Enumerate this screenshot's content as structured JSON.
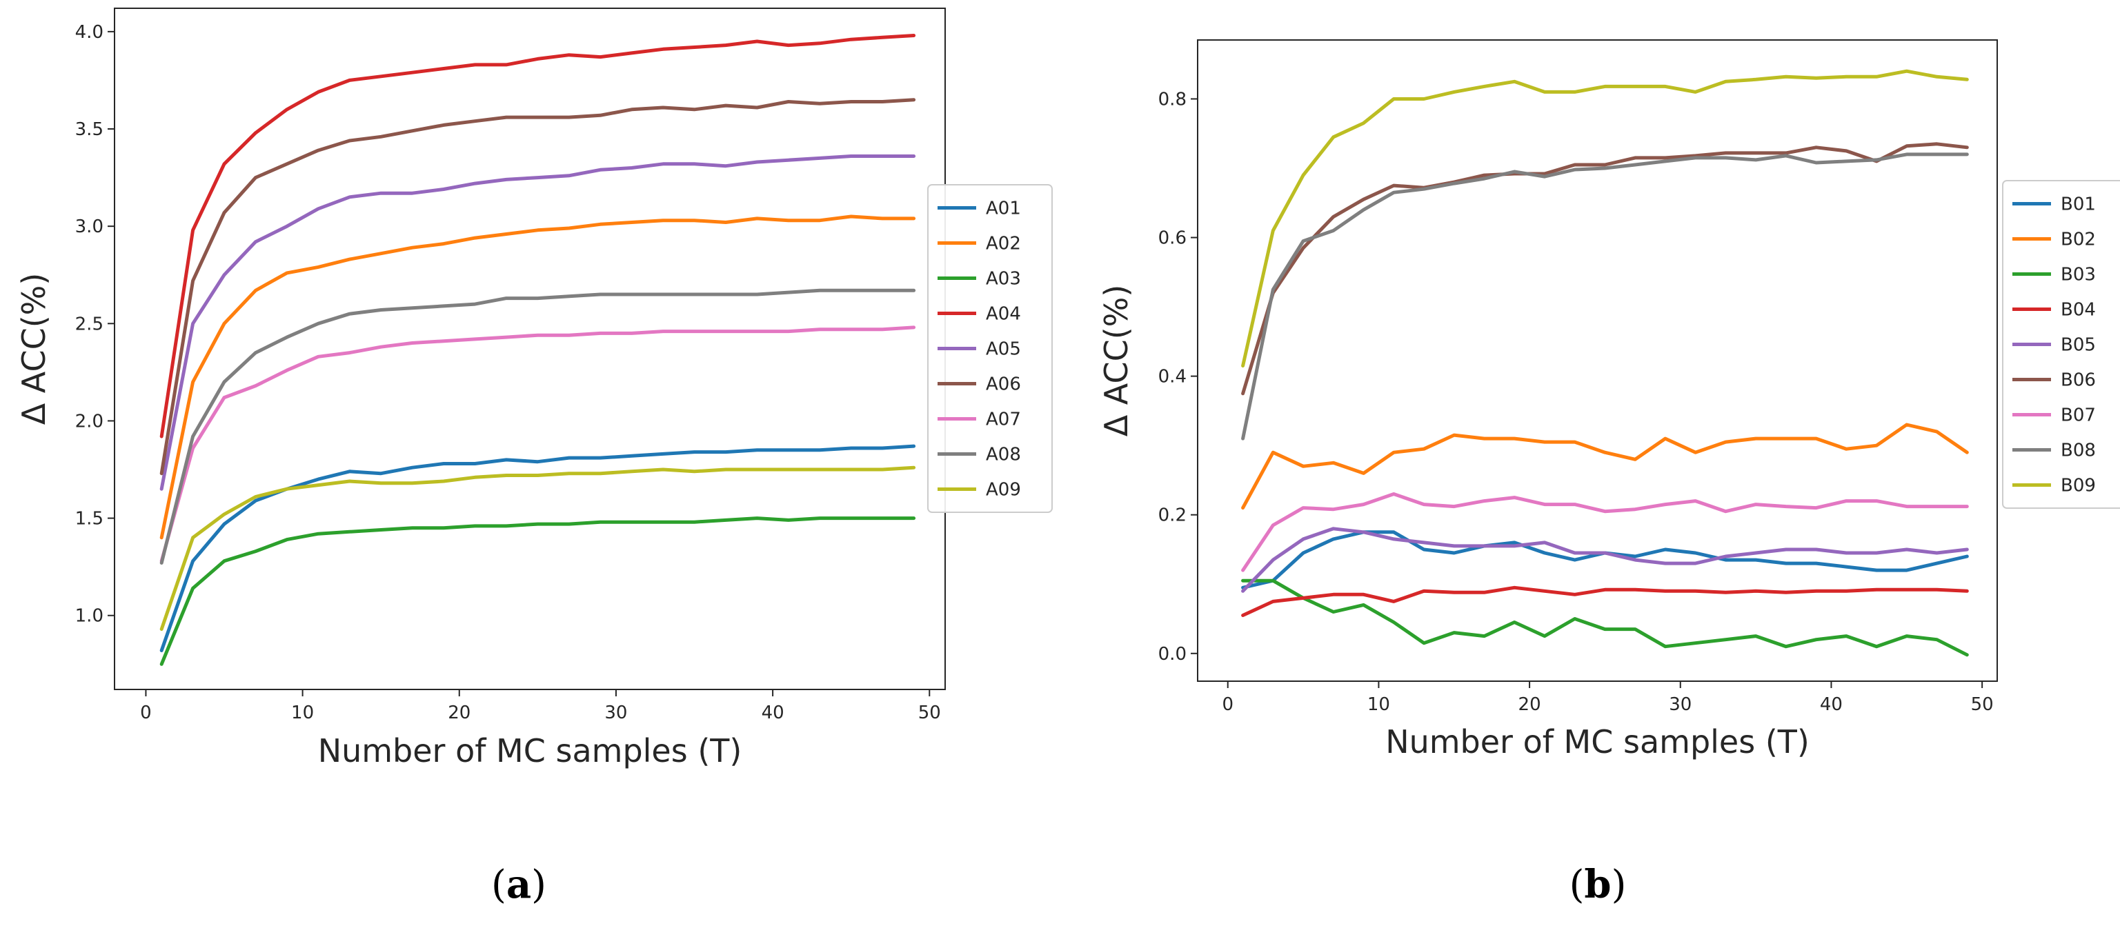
{
  "chart_data": [
    {
      "type": "line",
      "caption_letter": "a",
      "xlabel": "Number of MC samples (T)",
      "ylabel": "Δ ACC(%)",
      "xlim": [
        -2,
        51
      ],
      "ylim": [
        0.62,
        4.12
      ],
      "xticks": [
        0,
        10,
        20,
        30,
        40,
        50
      ],
      "yticks": [
        1.0,
        1.5,
        2.0,
        2.5,
        3.0,
        3.5,
        4.0
      ],
      "ytick_labels": [
        "1.0",
        "1.5",
        "2.0",
        "2.5",
        "3.0",
        "3.5",
        "4.0"
      ],
      "grid": false,
      "legend_position": "right",
      "x": [
        1,
        3,
        5,
        7,
        9,
        11,
        13,
        15,
        17,
        19,
        21,
        23,
        25,
        27,
        29,
        31,
        33,
        35,
        37,
        39,
        41,
        43,
        45,
        47,
        49
      ],
      "series": [
        {
          "name": "A01",
          "color": "#1f77b4",
          "values": [
            0.82,
            1.28,
            1.47,
            1.59,
            1.65,
            1.7,
            1.74,
            1.73,
            1.76,
            1.78,
            1.78,
            1.8,
            1.79,
            1.81,
            1.81,
            1.82,
            1.83,
            1.84,
            1.84,
            1.85,
            1.85,
            1.85,
            1.86,
            1.86,
            1.87
          ]
        },
        {
          "name": "A02",
          "color": "#ff7f0e",
          "values": [
            1.4,
            2.2,
            2.5,
            2.67,
            2.76,
            2.79,
            2.83,
            2.86,
            2.89,
            2.91,
            2.94,
            2.96,
            2.98,
            2.99,
            3.01,
            3.02,
            3.03,
            3.03,
            3.02,
            3.04,
            3.03,
            3.03,
            3.05,
            3.04,
            3.04
          ]
        },
        {
          "name": "A03",
          "color": "#2ca02c",
          "values": [
            0.75,
            1.14,
            1.28,
            1.33,
            1.39,
            1.42,
            1.43,
            1.44,
            1.45,
            1.45,
            1.46,
            1.46,
            1.47,
            1.47,
            1.48,
            1.48,
            1.48,
            1.48,
            1.49,
            1.5,
            1.49,
            1.5,
            1.5,
            1.5,
            1.5
          ]
        },
        {
          "name": "A04",
          "color": "#d62728",
          "values": [
            1.92,
            2.98,
            3.32,
            3.48,
            3.6,
            3.69,
            3.75,
            3.77,
            3.79,
            3.81,
            3.83,
            3.83,
            3.86,
            3.88,
            3.87,
            3.89,
            3.91,
            3.92,
            3.93,
            3.95,
            3.93,
            3.94,
            3.96,
            3.97,
            3.98
          ]
        },
        {
          "name": "A05",
          "color": "#9467bd",
          "values": [
            1.65,
            2.5,
            2.75,
            2.92,
            3.0,
            3.09,
            3.15,
            3.17,
            3.17,
            3.19,
            3.22,
            3.24,
            3.25,
            3.26,
            3.29,
            3.3,
            3.32,
            3.32,
            3.31,
            3.33,
            3.34,
            3.35,
            3.36,
            3.36,
            3.36
          ]
        },
        {
          "name": "A06",
          "color": "#8c564b",
          "values": [
            1.73,
            2.72,
            3.07,
            3.25,
            3.32,
            3.39,
            3.44,
            3.46,
            3.49,
            3.52,
            3.54,
            3.56,
            3.56,
            3.56,
            3.57,
            3.6,
            3.61,
            3.6,
            3.62,
            3.61,
            3.64,
            3.63,
            3.64,
            3.64,
            3.65
          ]
        },
        {
          "name": "A07",
          "color": "#e377c2",
          "values": [
            1.28,
            1.86,
            2.12,
            2.18,
            2.26,
            2.33,
            2.35,
            2.38,
            2.4,
            2.41,
            2.42,
            2.43,
            2.44,
            2.44,
            2.45,
            2.45,
            2.46,
            2.46,
            2.46,
            2.46,
            2.46,
            2.47,
            2.47,
            2.47,
            2.48
          ]
        },
        {
          "name": "A08",
          "color": "#7f7f7f",
          "values": [
            1.27,
            1.92,
            2.2,
            2.35,
            2.43,
            2.5,
            2.55,
            2.57,
            2.58,
            2.59,
            2.6,
            2.63,
            2.63,
            2.64,
            2.65,
            2.65,
            2.65,
            2.65,
            2.65,
            2.65,
            2.66,
            2.67,
            2.67,
            2.67,
            2.67
          ]
        },
        {
          "name": "A09",
          "color": "#bcbd22",
          "values": [
            0.93,
            1.4,
            1.52,
            1.61,
            1.65,
            1.67,
            1.69,
            1.68,
            1.68,
            1.69,
            1.71,
            1.72,
            1.72,
            1.73,
            1.73,
            1.74,
            1.75,
            1.74,
            1.75,
            1.75,
            1.75,
            1.75,
            1.75,
            1.75,
            1.76
          ]
        }
      ]
    },
    {
      "type": "line",
      "caption_letter": "b",
      "xlabel": "Number of MC samples (T)",
      "ylabel": "Δ ACC(%)",
      "xlim": [
        -2,
        51
      ],
      "ylim": [
        -0.04,
        0.885
      ],
      "xticks": [
        0,
        10,
        20,
        30,
        40,
        50
      ],
      "yticks": [
        0.0,
        0.2,
        0.4,
        0.6,
        0.8
      ],
      "ytick_labels": [
        "0.0",
        "0.2",
        "0.4",
        "0.6",
        "0.8"
      ],
      "grid": false,
      "legend_position": "right",
      "x": [
        1,
        3,
        5,
        7,
        9,
        11,
        13,
        15,
        17,
        19,
        21,
        23,
        25,
        27,
        29,
        31,
        33,
        35,
        37,
        39,
        41,
        43,
        45,
        47,
        49
      ],
      "series": [
        {
          "name": "B01",
          "color": "#1f77b4",
          "values": [
            0.095,
            0.105,
            0.145,
            0.165,
            0.175,
            0.175,
            0.15,
            0.145,
            0.155,
            0.16,
            0.145,
            0.135,
            0.145,
            0.14,
            0.15,
            0.145,
            0.135,
            0.135,
            0.13,
            0.13,
            0.125,
            0.12,
            0.12,
            0.13,
            0.14
          ]
        },
        {
          "name": "B02",
          "color": "#ff7f0e",
          "values": [
            0.21,
            0.29,
            0.27,
            0.275,
            0.26,
            0.29,
            0.295,
            0.315,
            0.31,
            0.31,
            0.305,
            0.305,
            0.29,
            0.28,
            0.31,
            0.29,
            0.305,
            0.31,
            0.31,
            0.31,
            0.295,
            0.3,
            0.33,
            0.32,
            0.29
          ]
        },
        {
          "name": "B03",
          "color": "#2ca02c",
          "values": [
            0.105,
            0.105,
            0.08,
            0.06,
            0.07,
            0.045,
            0.015,
            0.03,
            0.025,
            0.045,
            0.025,
            0.05,
            0.035,
            0.035,
            0.01,
            0.015,
            0.02,
            0.025,
            0.01,
            0.02,
            0.025,
            0.01,
            0.025,
            0.02,
            -0.002
          ]
        },
        {
          "name": "B04",
          "color": "#d62728",
          "values": [
            0.055,
            0.075,
            0.08,
            0.085,
            0.085,
            0.075,
            0.09,
            0.088,
            0.088,
            0.095,
            0.09,
            0.085,
            0.092,
            0.092,
            0.09,
            0.09,
            0.088,
            0.09,
            0.088,
            0.09,
            0.09,
            0.092,
            0.092,
            0.092,
            0.09
          ]
        },
        {
          "name": "B05",
          "color": "#9467bd",
          "values": [
            0.09,
            0.135,
            0.165,
            0.18,
            0.175,
            0.165,
            0.16,
            0.155,
            0.155,
            0.155,
            0.16,
            0.145,
            0.145,
            0.135,
            0.13,
            0.13,
            0.14,
            0.145,
            0.15,
            0.15,
            0.145,
            0.145,
            0.15,
            0.145,
            0.15
          ]
        },
        {
          "name": "B06",
          "color": "#8c564b",
          "values": [
            0.375,
            0.52,
            0.585,
            0.63,
            0.655,
            0.675,
            0.672,
            0.68,
            0.69,
            0.692,
            0.692,
            0.705,
            0.705,
            0.715,
            0.715,
            0.718,
            0.722,
            0.722,
            0.722,
            0.73,
            0.725,
            0.71,
            0.732,
            0.735,
            0.73
          ]
        },
        {
          "name": "B07",
          "color": "#e377c2",
          "values": [
            0.12,
            0.185,
            0.21,
            0.208,
            0.215,
            0.23,
            0.215,
            0.212,
            0.22,
            0.225,
            0.215,
            0.215,
            0.205,
            0.208,
            0.215,
            0.22,
            0.205,
            0.215,
            0.212,
            0.21,
            0.22,
            0.22,
            0.212,
            0.212,
            0.212
          ]
        },
        {
          "name": "B08",
          "color": "#7f7f7f",
          "values": [
            0.31,
            0.525,
            0.595,
            0.61,
            0.64,
            0.665,
            0.67,
            0.678,
            0.685,
            0.695,
            0.688,
            0.698,
            0.7,
            0.705,
            0.71,
            0.715,
            0.715,
            0.712,
            0.718,
            0.708,
            0.71,
            0.712,
            0.72,
            0.72,
            0.72
          ]
        },
        {
          "name": "B09",
          "color": "#bcbd22",
          "values": [
            0.415,
            0.61,
            0.69,
            0.745,
            0.765,
            0.8,
            0.8,
            0.81,
            0.818,
            0.825,
            0.81,
            0.81,
            0.818,
            0.818,
            0.818,
            0.81,
            0.825,
            0.828,
            0.832,
            0.83,
            0.832,
            0.832,
            0.84,
            0.832,
            0.828
          ]
        }
      ]
    }
  ]
}
